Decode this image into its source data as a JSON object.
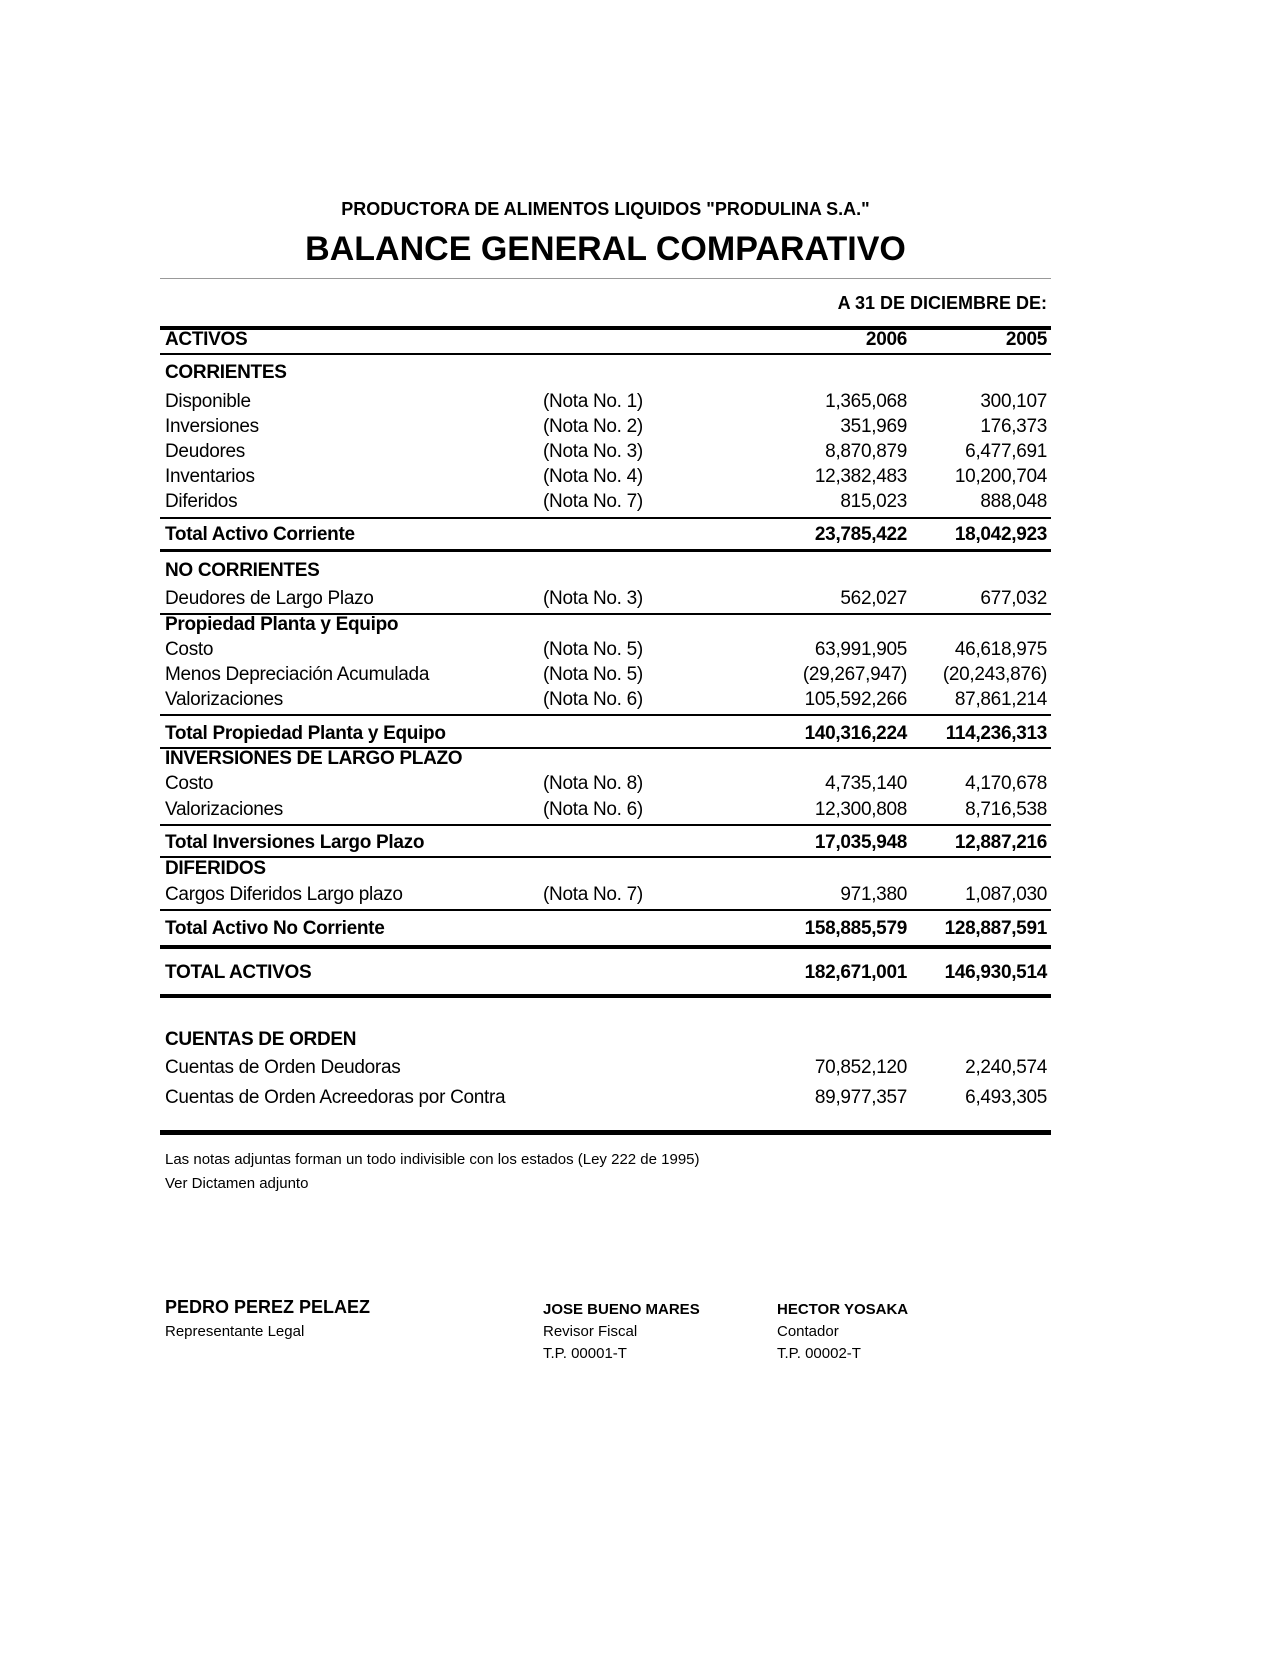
{
  "header": {
    "company": "PRODUCTORA DE ALIMENTOS LIQUIDOS \"PRODULINA S.A.\"",
    "title": "BALANCE GENERAL COMPARATIVO",
    "date_label": "A 31 DE DICIEMBRE DE:"
  },
  "rows": [
    {
      "label": "ACTIVOS",
      "note": "",
      "v2006": "2006",
      "v2005": "2005",
      "bold": true
    },
    {
      "label": "CORRIENTES",
      "note": "",
      "v2006": "",
      "v2005": "",
      "bold": true
    },
    {
      "label": "Disponible",
      "note": "(Nota No. 1)",
      "v2006": "1,365,068",
      "v2005": "300,107",
      "bold": false
    },
    {
      "label": "Inversiones",
      "note": "(Nota No. 2)",
      "v2006": "351,969",
      "v2005": "176,373",
      "bold": false
    },
    {
      "label": "Deudores",
      "note": "(Nota No. 3)",
      "v2006": "8,870,879",
      "v2005": "6,477,691",
      "bold": false
    },
    {
      "label": "Inventarios",
      "note": "(Nota No. 4)",
      "v2006": "12,382,483",
      "v2005": "10,200,704",
      "bold": false
    },
    {
      "label": "Diferidos",
      "note": "(Nota No. 7)",
      "v2006": "815,023",
      "v2005": "888,048",
      "bold": false
    },
    {
      "label": "Total Activo Corriente",
      "note": "",
      "v2006": "23,785,422",
      "v2005": "18,042,923",
      "bold": true
    },
    {
      "label": "NO CORRIENTES",
      "note": "",
      "v2006": "",
      "v2005": "",
      "bold": true
    },
    {
      "label": "Deudores de Largo Plazo",
      "note": "(Nota No. 3)",
      "v2006": "562,027",
      "v2005": "677,032",
      "bold": false
    },
    {
      "label": "Propiedad Planta y Equipo",
      "note": "",
      "v2006": "",
      "v2005": "",
      "bold": true
    },
    {
      "label": "Costo",
      "note": "(Nota No. 5)",
      "v2006": "63,991,905",
      "v2005": "46,618,975",
      "bold": false
    },
    {
      "label": "Menos Depreciación Acumulada",
      "note": "(Nota No. 5)",
      "v2006": "(29,267,947)",
      "v2005": "(20,243,876)",
      "bold": false
    },
    {
      "label": "Valorizaciones",
      "note": "(Nota No. 6)",
      "v2006": "105,592,266",
      "v2005": "87,861,214",
      "bold": false
    },
    {
      "label": "Total Propiedad Planta y Equipo",
      "note": "",
      "v2006": "140,316,224",
      "v2005": "114,236,313",
      "bold": true
    },
    {
      "label": "INVERSIONES DE LARGO PLAZO",
      "note": "",
      "v2006": "",
      "v2005": "",
      "bold": true
    },
    {
      "label": "Costo",
      "note": "(Nota No. 8)",
      "v2006": "4,735,140",
      "v2005": "4,170,678",
      "bold": false
    },
    {
      "label": "Valorizaciones",
      "note": "(Nota No. 6)",
      "v2006": "12,300,808",
      "v2005": "8,716,538",
      "bold": false
    },
    {
      "label": "Total Inversiones Largo Plazo",
      "note": "",
      "v2006": "17,035,948",
      "v2005": "12,887,216",
      "bold": true
    },
    {
      "label": "DIFERIDOS",
      "note": "",
      "v2006": "",
      "v2005": "",
      "bold": true
    },
    {
      "label": "Cargos Diferidos Largo plazo",
      "note": "(Nota No. 7)",
      "v2006": "971,380",
      "v2005": "1,087,030",
      "bold": false
    },
    {
      "label": "Total Activo No Corriente",
      "note": "",
      "v2006": "158,885,579",
      "v2005": "128,887,591",
      "bold": true
    },
    {
      "label": "TOTAL ACTIVOS",
      "note": "",
      "v2006": "182,671,001",
      "v2005": "146,930,514",
      "bold": true
    },
    {
      "label": "CUENTAS DE ORDEN",
      "note": "",
      "v2006": "",
      "v2005": "",
      "bold": true
    },
    {
      "label": "Cuentas de Orden Deudoras",
      "note": "",
      "v2006": "70,852,120",
      "v2005": "2,240,574",
      "bold": false
    },
    {
      "label": "Cuentas de Orden Acreedoras por Contra",
      "note": "",
      "v2006": "89,977,357",
      "v2005": "6,493,305",
      "bold": false
    }
  ],
  "footer": {
    "note1": "Las notas adjuntas forman un todo indivisible con  los estados (Ley 222 de 1995)",
    "note2": "Ver Dictamen adjunto"
  },
  "signatures": [
    {
      "name": "PEDRO PEREZ PELAEZ",
      "role": "Representante Legal",
      "tp": ""
    },
    {
      "name": "JOSE BUENO MARES",
      "role": "Revisor Fiscal",
      "tp": "T.P.  00001-T"
    },
    {
      "name": "HECTOR YOSAKA",
      "role": "Contador",
      "tp": "T.P.  00002-T"
    }
  ]
}
